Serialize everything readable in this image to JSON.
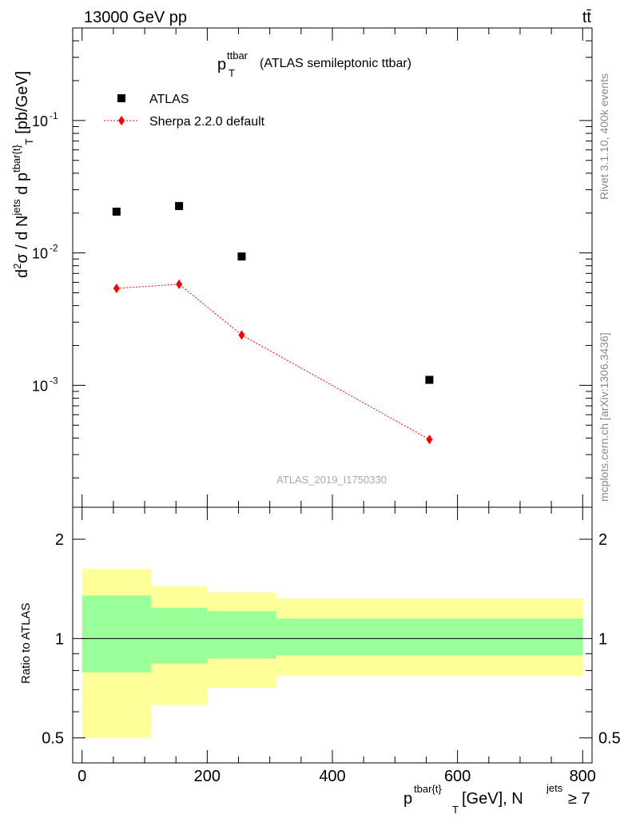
{
  "header": {
    "energy_label": "13000 GeV pp",
    "process_label": "tt̄"
  },
  "main_panel": {
    "title_main": "p",
    "title_sup": "ttbar",
    "title_sub": "T",
    "title_rest": "(ATLAS semileptonic ttbar)",
    "watermark": "ATLAS_2019_I1750330",
    "side_top": "Rivet 3.1.10,  400k events",
    "side_bottom": "mcplots.cern.ch [arXiv:1306.3436]",
    "ylabel_parts": {
      "d2": "d",
      "d2sup": "2",
      "sigma": "σ  /  d N",
      "jets": "jets",
      "dp": " d p",
      "tbar": "tbar{t}",
      "T": "T",
      "unit": " [pb/GeV]"
    }
  },
  "ratio_panel": {
    "ylabel": "Ratio to ATLAS",
    "yticks": [
      "0.5",
      "1",
      "2"
    ]
  },
  "xaxis": {
    "xlabel_p": "p",
    "xlabel_sup": "tbar{t}",
    "xlabel_sub": "T",
    "xlabel_unit": " [GeV], N",
    "xlabel_jets": "jets",
    "xlabel_cond": " ≥ 7",
    "xticks": [
      "0",
      "200",
      "400",
      "600",
      "800"
    ]
  },
  "legend": {
    "entries": [
      "ATLAS",
      "Sherpa 2.2.0 default"
    ]
  },
  "chart_data": {
    "type": "scatter",
    "yscale": "log",
    "xlim": [
      -15,
      815
    ],
    "ylim": [
      0.00012,
      0.5
    ],
    "yticks": [
      0.001,
      0.01,
      0.1
    ],
    "ytick_labels": [
      "10^-3",
      "10^-2",
      "10^-1"
    ],
    "series": [
      {
        "name": "ATLAS",
        "marker": "square",
        "color": "#000000",
        "x": [
          55,
          155,
          255,
          555
        ],
        "y": [
          0.0205,
          0.0226,
          0.0094,
          0.0011
        ]
      },
      {
        "name": "Sherpa 2.2.0 default",
        "marker": "diamond",
        "color": "#ff0000",
        "line": "dotted",
        "x": [
          55,
          155,
          255,
          555
        ],
        "y": [
          0.0054,
          0.0058,
          0.0024,
          0.00039
        ]
      }
    ],
    "ratio": {
      "ylim": [
        0.42,
        2.5
      ],
      "reference": 1,
      "bins": [
        [
          0,
          110
        ],
        [
          110,
          200
        ],
        [
          200,
          310
        ],
        [
          310,
          800
        ]
      ],
      "inner_band": [
        [
          0.79,
          1.35
        ],
        [
          0.84,
          1.24
        ],
        [
          0.87,
          1.21
        ],
        [
          0.89,
          1.15
        ]
      ],
      "outer_band": [
        [
          0.5,
          1.63
        ],
        [
          0.63,
          1.44
        ],
        [
          0.71,
          1.38
        ],
        [
          0.77,
          1.32
        ]
      ],
      "inner_color": "#99ff99",
      "outer_color": "#ffff99"
    }
  }
}
